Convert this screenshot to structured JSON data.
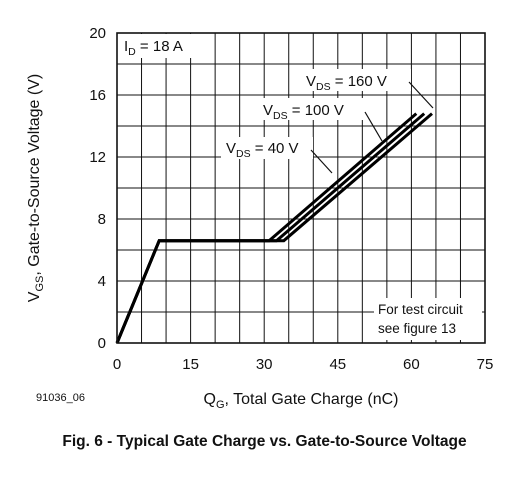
{
  "chart_data": {
    "type": "line",
    "xlabel": {
      "main": "Q",
      "sub": "G",
      "rest": ", Total Gate Charge (nC)"
    },
    "ylabel": {
      "main": "V",
      "sub": "GS",
      "rest": ", Gate-to-Source Voltage (V)"
    },
    "xlim": [
      0,
      75
    ],
    "ylim": [
      0,
      20
    ],
    "xticks": [
      0,
      15,
      30,
      45,
      60,
      75
    ],
    "yticks": [
      0,
      4,
      8,
      12,
      16,
      20
    ],
    "xtick_labels": [
      "0",
      "15",
      "30",
      "45",
      "60",
      "75"
    ],
    "ytick_labels": [
      "0",
      "4",
      "8",
      "12",
      "16",
      "20"
    ],
    "minor_x_step": 5,
    "minor_y_step": 2,
    "grid": true,
    "series": [
      {
        "name": "VDS = 40 V",
        "points": [
          [
            0,
            0
          ],
          [
            8.6,
            6.6
          ],
          [
            31.0,
            6.6
          ],
          [
            61.0,
            14.8
          ]
        ]
      },
      {
        "name": "VDS = 100 V",
        "points": [
          [
            0,
            0
          ],
          [
            8.6,
            6.6
          ],
          [
            32.5,
            6.6
          ],
          [
            62.6,
            14.8
          ]
        ]
      },
      {
        "name": "VDS = 160 V",
        "points": [
          [
            0,
            0
          ],
          [
            8.6,
            6.6
          ],
          [
            34.0,
            6.6
          ],
          [
            64.2,
            14.8
          ]
        ]
      }
    ],
    "annotations": [
      {
        "id": "id-label",
        "main": "I",
        "sub": "D",
        "rest": " = 18 A"
      },
      {
        "id": "vds-40",
        "main": "V",
        "sub": "DS",
        "rest": " = 40 V"
      },
      {
        "id": "vds-100",
        "main": "V",
        "sub": "DS",
        "rest": " = 100 V"
      },
      {
        "id": "vds-160",
        "main": "V",
        "sub": "DS",
        "rest": " = 160 V"
      }
    ],
    "note": [
      "For test circuit",
      "see figure 13"
    ],
    "line_color": "#000000"
  },
  "figure_id": "91036_06",
  "caption": "Fig. 6 - Typical Gate Charge vs. Gate-to-Source Voltage"
}
